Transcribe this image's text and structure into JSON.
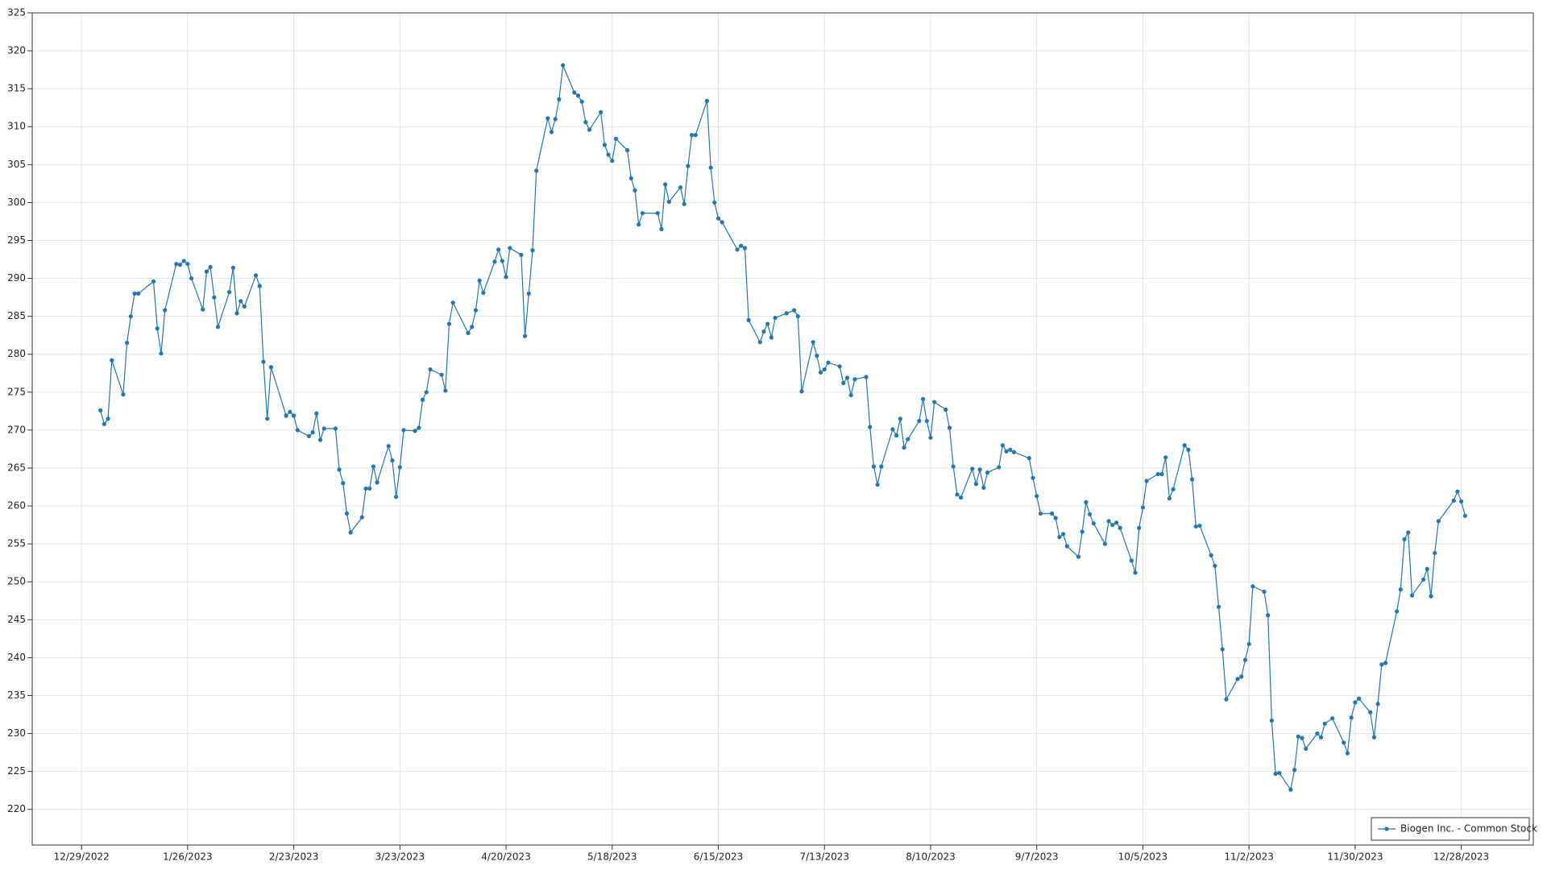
{
  "chart_data": {
    "type": "line",
    "x": [
      "2023-01-03",
      "2023-01-04",
      "2023-01-05",
      "2023-01-06",
      "2023-01-09",
      "2023-01-10",
      "2023-01-11",
      "2023-01-12",
      "2023-01-13",
      "2023-01-17",
      "2023-01-18",
      "2023-01-19",
      "2023-01-20",
      "2023-01-23",
      "2023-01-24",
      "2023-01-25",
      "2023-01-26",
      "2023-01-27",
      "2023-01-30",
      "2023-01-31",
      "2023-02-01",
      "2023-02-02",
      "2023-02-03",
      "2023-02-06",
      "2023-02-07",
      "2023-02-08",
      "2023-02-09",
      "2023-02-10",
      "2023-02-13",
      "2023-02-14",
      "2023-02-15",
      "2023-02-16",
      "2023-02-17",
      "2023-02-21",
      "2023-02-22",
      "2023-02-23",
      "2023-02-24",
      "2023-02-27",
      "2023-02-28",
      "2023-03-01",
      "2023-03-02",
      "2023-03-03",
      "2023-03-06",
      "2023-03-07",
      "2023-03-08",
      "2023-03-09",
      "2023-03-10",
      "2023-03-13",
      "2023-03-14",
      "2023-03-15",
      "2023-03-16",
      "2023-03-17",
      "2023-03-20",
      "2023-03-21",
      "2023-03-22",
      "2023-03-23",
      "2023-03-24",
      "2023-03-27",
      "2023-03-28",
      "2023-03-29",
      "2023-03-30",
      "2023-03-31",
      "2023-04-03",
      "2023-04-04",
      "2023-04-05",
      "2023-04-06",
      "2023-04-10",
      "2023-04-11",
      "2023-04-12",
      "2023-04-13",
      "2023-04-14",
      "2023-04-17",
      "2023-04-18",
      "2023-04-19",
      "2023-04-20",
      "2023-04-21",
      "2023-04-24",
      "2023-04-25",
      "2023-04-26",
      "2023-04-27",
      "2023-04-28",
      "2023-05-01",
      "2023-05-02",
      "2023-05-03",
      "2023-05-04",
      "2023-05-05",
      "2023-05-08",
      "2023-05-09",
      "2023-05-10",
      "2023-05-11",
      "2023-05-12",
      "2023-05-15",
      "2023-05-16",
      "2023-05-17",
      "2023-05-18",
      "2023-05-19",
      "2023-05-22",
      "2023-05-23",
      "2023-05-24",
      "2023-05-25",
      "2023-05-26",
      "2023-05-30",
      "2023-05-31",
      "2023-06-01",
      "2023-06-02",
      "2023-06-05",
      "2023-06-06",
      "2023-06-07",
      "2023-06-08",
      "2023-06-09",
      "2023-06-12",
      "2023-06-13",
      "2023-06-14",
      "2023-06-15",
      "2023-06-16",
      "2023-06-20",
      "2023-06-21",
      "2023-06-22",
      "2023-06-23",
      "2023-06-26",
      "2023-06-27",
      "2023-06-28",
      "2023-06-29",
      "2023-06-30",
      "2023-07-03",
      "2023-07-05",
      "2023-07-06",
      "2023-07-07",
      "2023-07-10",
      "2023-07-11",
      "2023-07-12",
      "2023-07-13",
      "2023-07-14",
      "2023-07-17",
      "2023-07-18",
      "2023-07-19",
      "2023-07-20",
      "2023-07-21",
      "2023-07-24",
      "2023-07-25",
      "2023-07-26",
      "2023-07-27",
      "2023-07-28",
      "2023-07-31",
      "2023-08-01",
      "2023-08-02",
      "2023-08-03",
      "2023-08-04",
      "2023-08-07",
      "2023-08-08",
      "2023-08-09",
      "2023-08-10",
      "2023-08-11",
      "2023-08-14",
      "2023-08-15",
      "2023-08-16",
      "2023-08-17",
      "2023-08-18",
      "2023-08-21",
      "2023-08-22",
      "2023-08-23",
      "2023-08-24",
      "2023-08-25",
      "2023-08-28",
      "2023-08-29",
      "2023-08-30",
      "2023-08-31",
      "2023-09-01",
      "2023-09-05",
      "2023-09-06",
      "2023-09-07",
      "2023-09-08",
      "2023-09-11",
      "2023-09-12",
      "2023-09-13",
      "2023-09-14",
      "2023-09-15",
      "2023-09-18",
      "2023-09-19",
      "2023-09-20",
      "2023-09-21",
      "2023-09-22",
      "2023-09-25",
      "2023-09-26",
      "2023-09-27",
      "2023-09-28",
      "2023-09-29",
      "2023-10-02",
      "2023-10-03",
      "2023-10-04",
      "2023-10-05",
      "2023-10-06",
      "2023-10-09",
      "2023-10-10",
      "2023-10-11",
      "2023-10-12",
      "2023-10-13",
      "2023-10-16",
      "2023-10-17",
      "2023-10-18",
      "2023-10-19",
      "2023-10-20",
      "2023-10-23",
      "2023-10-24",
      "2023-10-25",
      "2023-10-26",
      "2023-10-27",
      "2023-10-30",
      "2023-10-31",
      "2023-11-01",
      "2023-11-02",
      "2023-11-03",
      "2023-11-06",
      "2023-11-07",
      "2023-11-08",
      "2023-11-09",
      "2023-11-10",
      "2023-11-13",
      "2023-11-14",
      "2023-11-15",
      "2023-11-16",
      "2023-11-17",
      "2023-11-20",
      "2023-11-21",
      "2023-11-22",
      "2023-11-24",
      "2023-11-27",
      "2023-11-28",
      "2023-11-29",
      "2023-11-30",
      "2023-12-01",
      "2023-12-04",
      "2023-12-05",
      "2023-12-06",
      "2023-12-07",
      "2023-12-08",
      "2023-12-11",
      "2023-12-12",
      "2023-12-13",
      "2023-12-14",
      "2023-12-15",
      "2023-12-18",
      "2023-12-19",
      "2023-12-20",
      "2023-12-21",
      "2023-12-22",
      "2023-12-26",
      "2023-12-27",
      "2023-12-28",
      "2023-12-29"
    ],
    "series": [
      {
        "name": "Biogen Inc. - Common Stock",
        "color": "#1f77b4",
        "values": [
          272.6,
          270.8,
          271.5,
          279.2,
          274.7,
          281.5,
          285,
          288,
          288,
          289.6,
          283.4,
          280.1,
          285.8,
          291.9,
          291.8,
          292.3,
          291.9,
          290,
          285.9,
          290.9,
          291.5,
          287.5,
          283.6,
          288.2,
          291.4,
          285.4,
          287,
          286.3,
          290.4,
          289,
          279,
          271.5,
          278.3,
          271.9,
          272.4,
          271.9,
          270,
          269.2,
          269.7,
          272.2,
          268.7,
          270.2,
          270.2,
          264.8,
          263,
          259,
          256.5,
          258.5,
          262.3,
          262.3,
          265.2,
          263.1,
          267.9,
          266,
          261.2,
          265.1,
          270,
          269.9,
          270.3,
          274,
          275,
          278,
          277.3,
          275.2,
          284,
          286.8,
          282.8,
          283.6,
          285.8,
          289.7,
          288.1,
          292.2,
          293.8,
          292.3,
          290.2,
          294,
          293.1,
          282.4,
          288,
          293.7,
          304.2,
          311.1,
          309.3,
          311,
          313.6,
          318.1,
          314.5,
          314.1,
          313.3,
          310.6,
          309.6,
          311.9,
          307.6,
          306.3,
          305.5,
          308.4,
          306.9,
          303.2,
          301.6,
          297.1,
          298.6,
          298.6,
          296.5,
          302.4,
          300.1,
          302,
          299.8,
          304.8,
          308.9,
          308.9,
          313.4,
          304.6,
          300,
          297.9,
          297.4,
          293.8,
          294.3,
          294,
          284.5,
          281.6,
          283,
          284,
          282.2,
          284.8,
          285.4,
          285.8,
          285,
          275.1,
          281.6,
          279.8,
          277.6,
          278,
          278.9,
          278.4,
          276.2,
          276.9,
          274.6,
          276.7,
          277,
          270.4,
          265.2,
          262.8,
          265.2,
          270.1,
          269.3,
          271.5,
          267.7,
          268.8,
          271.2,
          274.1,
          271.2,
          269,
          273.7,
          272.7,
          270.3,
          265.2,
          261.5,
          261.1,
          264.9,
          262.9,
          264.8,
          262.4,
          264.4,
          265.1,
          268,
          267.2,
          267.4,
          267.1,
          266.3,
          263.7,
          261.3,
          259,
          259,
          258.4,
          255.9,
          256.3,
          254.7,
          253.3,
          256.6,
          260.5,
          258.9,
          257.7,
          255,
          258,
          257.5,
          257.8,
          257.1,
          252.8,
          251.2,
          257.1,
          259.8,
          263.3,
          264.2,
          264.2,
          266.4,
          261,
          262.2,
          268,
          267.4,
          263.5,
          257.3,
          257.4,
          253.5,
          252.1,
          246.7,
          241.1,
          234.5,
          237.2,
          237.5,
          239.7,
          241.8,
          249.4,
          248.7,
          245.6,
          231.7,
          224.7,
          224.8,
          222.6,
          225.2,
          229.6,
          229.4,
          228,
          230,
          229.5,
          231.3,
          232,
          228.8,
          227.4,
          232.1,
          234.1,
          234.6,
          232.8,
          229.5,
          233.9,
          239.1,
          239.3,
          246.1,
          249,
          255.6,
          256.5,
          248.2,
          250.3,
          251.7,
          248.1,
          253.8,
          258,
          260.7,
          261.9,
          260.6,
          258.7
        ]
      }
    ],
    "xlim": [
      "2022-12-16",
      "2024-01-16"
    ],
    "xticks": [
      {
        "value": "2022-12-29",
        "label": "12/29/2022"
      },
      {
        "value": "2023-01-26",
        "label": "1/26/2023"
      },
      {
        "value": "2023-02-23",
        "label": "2/23/2023"
      },
      {
        "value": "2023-03-23",
        "label": "3/23/2023"
      },
      {
        "value": "2023-04-20",
        "label": "4/20/2023"
      },
      {
        "value": "2023-05-18",
        "label": "5/18/2023"
      },
      {
        "value": "2023-06-15",
        "label": "6/15/2023"
      },
      {
        "value": "2023-07-13",
        "label": "7/13/2023"
      },
      {
        "value": "2023-08-10",
        "label": "8/10/2023"
      },
      {
        "value": "2023-09-07",
        "label": "9/7/2023"
      },
      {
        "value": "2023-10-05",
        "label": "10/5/2023"
      },
      {
        "value": "2023-11-02",
        "label": "11/2/2023"
      },
      {
        "value": "2023-11-30",
        "label": "11/30/2023"
      },
      {
        "value": "2023-12-28",
        "label": "12/28/2023"
      }
    ],
    "ylim": [
      215.3,
      325
    ],
    "yticks": [
      220,
      225,
      230,
      235,
      240,
      245,
      250,
      255,
      260,
      265,
      270,
      275,
      280,
      285,
      290,
      295,
      300,
      305,
      310,
      315,
      320,
      325
    ],
    "grid": true,
    "legend": "lower right"
  }
}
